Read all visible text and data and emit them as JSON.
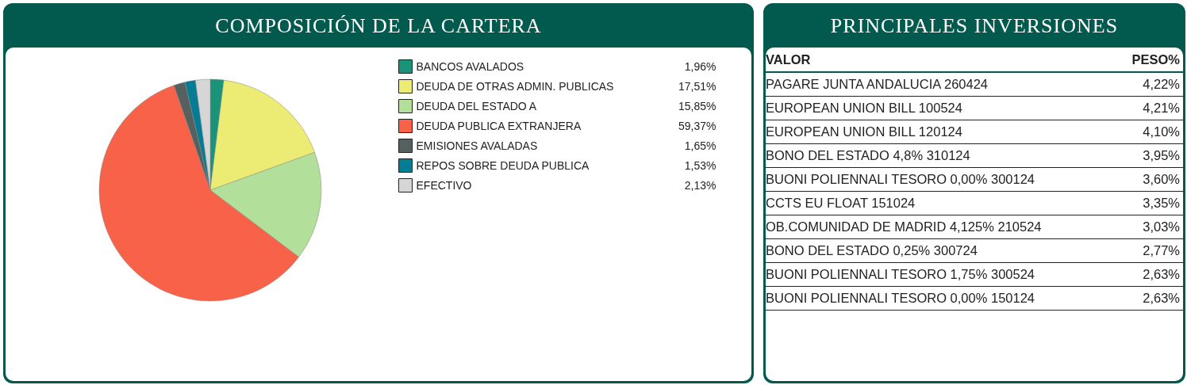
{
  "chart_data": [
    {
      "type": "pie",
      "title": "COMPOSICIÓN DE LA CARTERA",
      "legend": "top right",
      "categories": [
        "BANCOS AVALADOS",
        "DEUDA DE OTRAS ADMIN. PUBLICAS",
        "DEUDA DEL ESTADO A",
        "DEUDA PUBLICA EXTRANJERA",
        "EMISIONES AVALADAS",
        "REPOS SOBRE DEUDA PUBLICA",
        "EFECTIVO"
      ],
      "values": [
        1.96,
        17.51,
        15.85,
        59.37,
        1.65,
        1.53,
        2.13
      ],
      "value_labels": [
        "1,96%",
        "17,51%",
        "15,85%",
        "59,37%",
        "1,65%",
        "1,53%",
        "2,13%"
      ],
      "colors": [
        "#1a9478",
        "#ecec74",
        "#b2e09a",
        "#f76249",
        "#56605e",
        "#067c94",
        "#d6d6d6"
      ]
    },
    {
      "type": "other",
      "title": "PRINCIPALES INVERSIONES",
      "xlabel": "VALOR",
      "ylabel": "PESO%",
      "categories": [
        "PAGARE JUNTA ANDALUCIA 260424",
        "EUROPEAN UNION BILL 100524",
        "EUROPEAN UNION BILL 120124",
        "BONO DEL ESTADO 4,8% 310124",
        "BUONI POLIENNALI TESORO 0,00% 300124",
        "CCTS EU FLOAT 151024",
        "OB.COMUNIDAD DE MADRID 4,125% 210524",
        "BONO DEL ESTADO 0,25% 300724",
        "BUONI POLIENNALI TESORO 1,75% 300524",
        "BUONI POLIENNALI TESORO 0,00% 150124"
      ],
      "values": [
        4.22,
        4.21,
        4.1,
        3.95,
        3.6,
        3.35,
        3.03,
        2.77,
        2.63,
        2.63
      ],
      "value_labels": [
        "4,22%",
        "4,21%",
        "4,10%",
        "3,95%",
        "3,60%",
        "3,35%",
        "3,03%",
        "2,77%",
        "2,63%",
        "2,63%"
      ]
    }
  ]
}
